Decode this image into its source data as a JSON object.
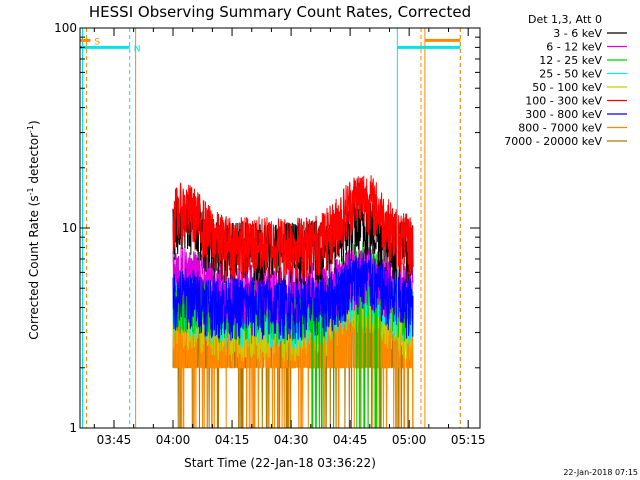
{
  "chart_data": {
    "type": "line",
    "title": "HESSI Observing Summary Count Rates, Corrected",
    "xlabel": "Start Time (22-Jan-18 03:36:22)",
    "ylabel_main": "Corrected Count Rate (s",
    "ylabel_sup1": "-1",
    "ylabel_mid": " detector",
    "ylabel_sup2": "-1",
    "ylabel_end": ")",
    "yscale": "log",
    "ylim": [
      1,
      100
    ],
    "xlim": [
      "03:36:22",
      "05:18:00"
    ],
    "x_ticks": [
      "03:45",
      "04:00",
      "04:15",
      "04:30",
      "04:45",
      "05:00",
      "05:15"
    ],
    "x_tick_minutes": [
      225,
      240,
      255,
      270,
      285,
      300,
      315
    ],
    "y_ticks": [
      "1",
      "10",
      "100"
    ],
    "y_tick_values": [
      1,
      10,
      100
    ],
    "timestamp": "22-Jan-2018 07:15",
    "legend_header": "Det 1,3, Att 0",
    "series": [
      {
        "name": "3 - 6 keV",
        "color": "#000000",
        "typical": 8.0,
        "peak1": 3.0,
        "peak2": 2.5
      },
      {
        "name": "6 - 12 keV",
        "color": "#dd00dd",
        "typical": 5.0,
        "peak1": 1.0,
        "peak2": 1.0
      },
      {
        "name": "12 - 25 keV",
        "color": "#00cc00",
        "typical": 4.0,
        "peak1": 0.5,
        "peak2": 2.5
      },
      {
        "name": "25 - 50 keV",
        "color": "#00eeee",
        "typical": 3.8,
        "peak1": 0.5,
        "peak2": 1.5
      },
      {
        "name": "50 - 100 keV",
        "color": "#cccc00",
        "typical": 3.3,
        "peak1": 0.5,
        "peak2": 1.5
      },
      {
        "name": "100 - 300 keV",
        "color": "#ff0000",
        "typical": 8.5,
        "peak1": 4.0,
        "peak2": 6.0
      },
      {
        "name": "300 - 800 keV",
        "color": "#0000ff",
        "typical": 4.2,
        "peak1": 0.5,
        "peak2": 1.5
      },
      {
        "name": "800 - 7000 keV",
        "color": "#ff8800",
        "typical": 2.8,
        "peak1": 0.0,
        "peak2": 0.0
      },
      {
        "name": "7000 - 20000 keV",
        "color": "#aa7700",
        "typical": 2.4,
        "peak1": 0.0,
        "peak2": 0.0
      }
    ],
    "data_span_minutes": [
      240.0,
      301.0
    ],
    "peaks_minutes": [
      243.0,
      288.0
    ],
    "markers": [
      {
        "label": "S",
        "color": "#ff8800",
        "start_min": 216.4,
        "end_min": 219.0
      },
      {
        "label": "N",
        "color": "#00e5e5",
        "start_min": 216.4,
        "end_min": 229.0
      },
      {
        "label": "",
        "color": "#ff8800",
        "start_min": 304.0,
        "end_min": 313.0
      },
      {
        "label": "",
        "color": "#00e5e5",
        "start_min": 297.0,
        "end_min": 313.0
      }
    ],
    "marker_level": 80,
    "cyan_lines_minutes": [
      217.0,
      229.0,
      297.0,
      313.0
    ],
    "orange_dashed_minutes": [
      218.0,
      303.0,
      313.0
    ],
    "orange_solid_minutes": [
      230.5,
      304.0
    ],
    "night_orbit": "N",
    "saa": "S",
    "grid": false,
    "legend_placement": "right"
  }
}
